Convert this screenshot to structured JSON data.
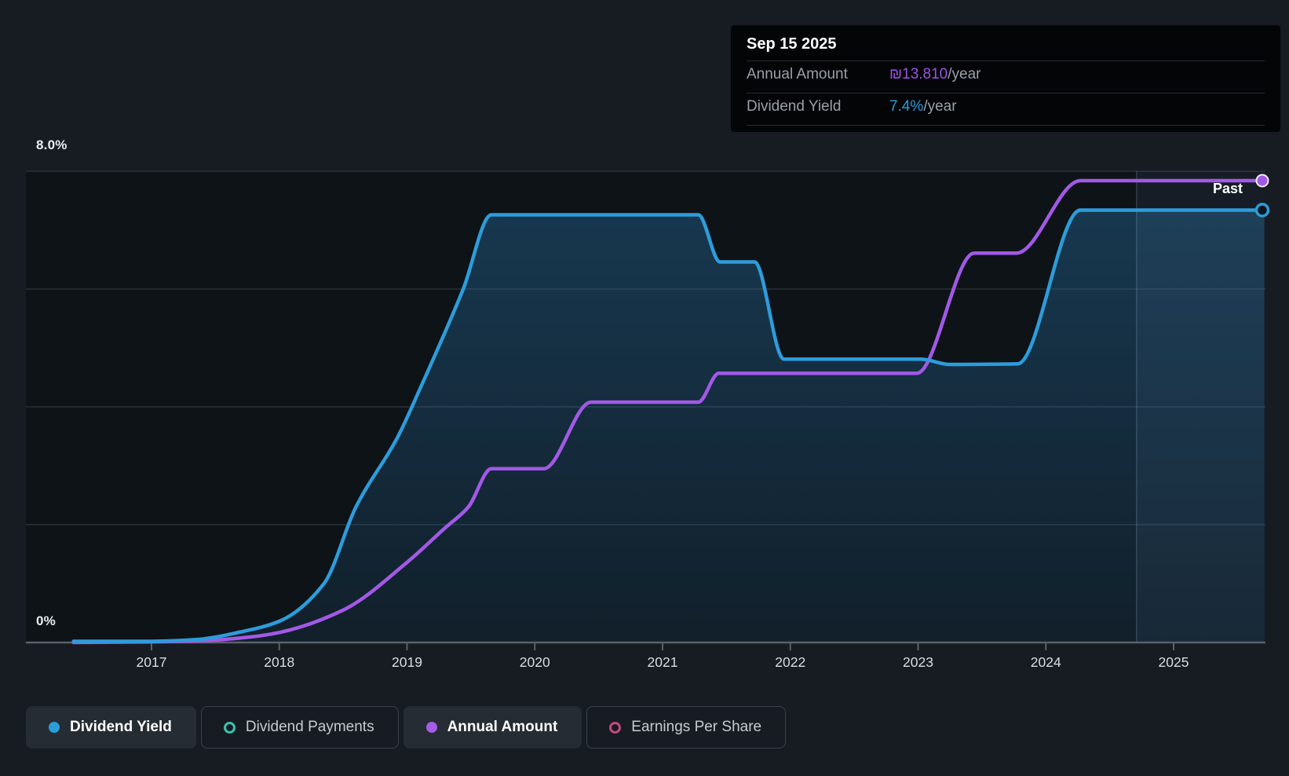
{
  "colors": {
    "page_bg": "#171c23",
    "plot_bg": "#0e1318",
    "gridline": "#353c45",
    "axis_line": "#59616a",
    "dividend_yield_blue": "#2d9cdb",
    "annual_amount_purple": "#a259e6",
    "dividend_payments_teal": "#3ec1ae",
    "earnings_per_share_pink": "#c2497d",
    "past_band_fill": "rgba(125,175,230,0.07)",
    "past_divider_line": "rgba(170,195,225,0.22)"
  },
  "tooltip": {
    "date": "Sep 15 2025",
    "rows": [
      {
        "label": "Annual Amount",
        "value": "₪13.810",
        "suffix": "/year",
        "value_color": "#9d52e8"
      },
      {
        "label": "Dividend Yield",
        "value": "7.4%",
        "suffix": "/year",
        "value_color": "#2d9cdb"
      }
    ]
  },
  "axes": {
    "y_top_label": "8.0%",
    "y_bottom_label": "0%",
    "x_labels": [
      "2017",
      "2018",
      "2019",
      "2020",
      "2021",
      "2022",
      "2023",
      "2024",
      "2025"
    ]
  },
  "past_label": "Past",
  "legend": [
    {
      "label": "Dividend Yield",
      "marker": "filled",
      "color": "#2d9cdb",
      "active": true
    },
    {
      "label": "Dividend Payments",
      "marker": "open",
      "color": "#3ec1ae",
      "active": false
    },
    {
      "label": "Annual Amount",
      "marker": "filled",
      "color": "#a55ce6",
      "active": true
    },
    {
      "label": "Earnings Per Share",
      "marker": "open",
      "color": "#c2497d",
      "active": false
    }
  ],
  "chart_data": {
    "type": "line",
    "title": "Dividend history: dividend yield and annual dividend amount over time",
    "x_axis": {
      "ticks": [
        2017,
        2018,
        2019,
        2020,
        2021,
        2022,
        2023,
        2024,
        2025
      ],
      "range": [
        2016.39,
        2025.71
      ]
    },
    "y_axis": {
      "unit": "%",
      "range": [
        0,
        8
      ],
      "gridlines_pct": [
        0,
        2,
        4,
        6,
        8
      ],
      "shown_labels": [
        "0%",
        "8.0%"
      ]
    },
    "past_divider_x": 2024.71,
    "hover_point": {
      "date": "Sep 15 2025",
      "annual_amount": "₪13.810/year",
      "dividend_yield": "7.4%/year"
    },
    "series": [
      {
        "name": "Dividend Yield",
        "unit": "%",
        "color": "#2d9cdb",
        "area_fill": true,
        "end_marker": "open",
        "x": [
          2016.39,
          2017.0,
          2017.35,
          2017.7,
          2018.0,
          2018.35,
          2018.6,
          2018.93,
          2019.1,
          2019.44,
          2019.66,
          2021.28,
          2021.45,
          2021.72,
          2021.95,
          2023.02,
          2023.25,
          2023.78,
          2024.27,
          2025.71
        ],
        "y": [
          0.02,
          0.02,
          0.05,
          0.18,
          0.36,
          1.0,
          2.3,
          3.5,
          4.3,
          6.0,
          7.26,
          7.26,
          6.46,
          6.46,
          4.81,
          4.81,
          4.72,
          4.73,
          7.34,
          7.34
        ]
      },
      {
        "name": "Annual Amount",
        "unit": "₪/year",
        "color": "#a259e6",
        "area_fill": false,
        "end_marker": "filled",
        "axis_note": "plotted on hidden ILS scale; y_pct are %-axis equivalents, y_ils the ₪ values (final = ₪13.81)",
        "x": [
          2016.39,
          2017.0,
          2017.4,
          2017.8,
          2018.0,
          2018.5,
          2019.0,
          2019.3,
          2019.48,
          2019.66,
          2020.07,
          2020.44,
          2021.28,
          2021.44,
          2022.99,
          2023.44,
          2023.77,
          2024.27,
          2025.71
        ],
        "y_pct": [
          0,
          0.01,
          0.03,
          0.1,
          0.17,
          0.55,
          1.36,
          1.95,
          2.3,
          2.95,
          2.95,
          4.08,
          4.08,
          4.57,
          4.57,
          6.61,
          6.61,
          7.84,
          7.84
        ],
        "y_ils": [
          0,
          0.02,
          0.05,
          0.18,
          0.3,
          0.97,
          2.4,
          3.44,
          4.05,
          5.2,
          5.2,
          7.19,
          7.19,
          8.05,
          8.05,
          11.64,
          11.64,
          13.81,
          13.81
        ]
      }
    ],
    "legend_series_not_plotted": [
      "Dividend Payments",
      "Earnings Per Share"
    ],
    "legend_position": "bottom"
  }
}
